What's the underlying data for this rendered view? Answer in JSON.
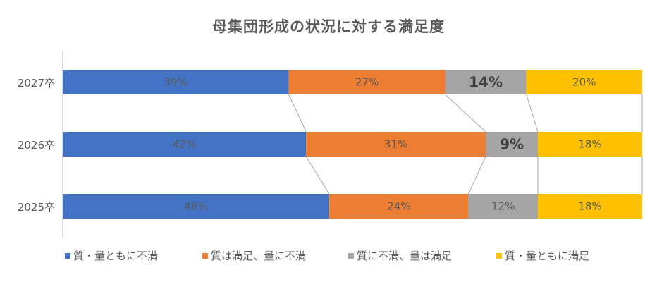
{
  "chart_data": {
    "type": "bar",
    "orientation": "horizontal",
    "stacked": "percent",
    "title": "母集団形成の状況に対する満足度",
    "categories": [
      "2027卒",
      "2026卒",
      "2025卒"
    ],
    "series": [
      {
        "name": "質・量ともに不満",
        "color": "#4472C4",
        "values": [
          39,
          42,
          46
        ]
      },
      {
        "name": "質は満足、量に不満",
        "color": "#ED7D31",
        "values": [
          27,
          31,
          24
        ]
      },
      {
        "name": "質に不満、量は満足",
        "color": "#A5A5A5",
        "values": [
          14,
          9,
          12
        ]
      },
      {
        "name": "質・量ともに満足",
        "color": "#FFC000",
        "values": [
          20,
          18,
          18
        ]
      }
    ],
    "data_labels": [
      [
        "39%",
        "27%",
        "14%",
        "20%"
      ],
      [
        "42%",
        "31%",
        "9%",
        "18%"
      ],
      [
        "46%",
        "24%",
        "12%",
        "18%"
      ]
    ],
    "highlighted_labels": [
      "14%",
      "9%"
    ],
    "series_lines": true,
    "legend_position": "bottom",
    "xlim": [
      0,
      100
    ],
    "grid": false
  },
  "title": "母集団形成の状況に対する満足度",
  "legend": [
    {
      "label": "質・量ともに不満",
      "color": "#4472C4"
    },
    {
      "label": "質は満足、量に不満",
      "color": "#ED7D31"
    },
    {
      "label": "質に不満、量は満足",
      "color": "#A5A5A5"
    },
    {
      "label": "質・量ともに満足",
      "color": "#FFC000"
    }
  ]
}
